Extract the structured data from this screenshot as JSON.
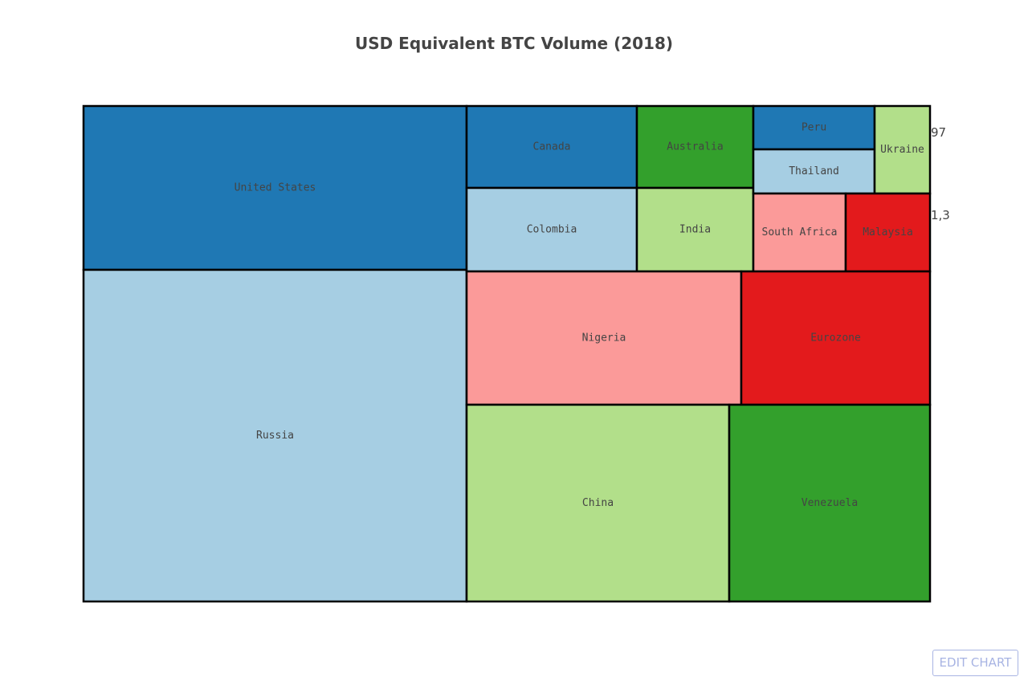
{
  "chart_data": {
    "type": "treemap",
    "title": "USD Equivalent BTC Volume (2018)",
    "cells": [
      {
        "label": "United States",
        "color": "#1f78b4"
      },
      {
        "label": "Russia",
        "color": "#a6cee3"
      },
      {
        "label": "Canada",
        "color": "#1f78b4"
      },
      {
        "label": "Colombia",
        "color": "#a6cee3"
      },
      {
        "label": "Australia",
        "color": "#33a02c"
      },
      {
        "label": "India",
        "color": "#b2df8a"
      },
      {
        "label": "Peru",
        "color": "#1f78b4"
      },
      {
        "label": "Thailand",
        "color": "#a6cee3"
      },
      {
        "label": "Ukraine",
        "color": "#b2df8a"
      },
      {
        "label": "South Africa",
        "color": "#fb9a99"
      },
      {
        "label": "Malaysia",
        "color": "#e31a1c"
      },
      {
        "label": "Nigeria",
        "color": "#fb9a99"
      },
      {
        "label": "Eurozone",
        "color": "#e31a1c"
      },
      {
        "label": "China",
        "color": "#b2df8a"
      },
      {
        "label": "Venezuela",
        "color": "#33a02c"
      }
    ],
    "clipped_labels": [
      "97",
      "1,3"
    ]
  },
  "toolbar": {
    "edit_chart_label": "EDIT CHART"
  }
}
